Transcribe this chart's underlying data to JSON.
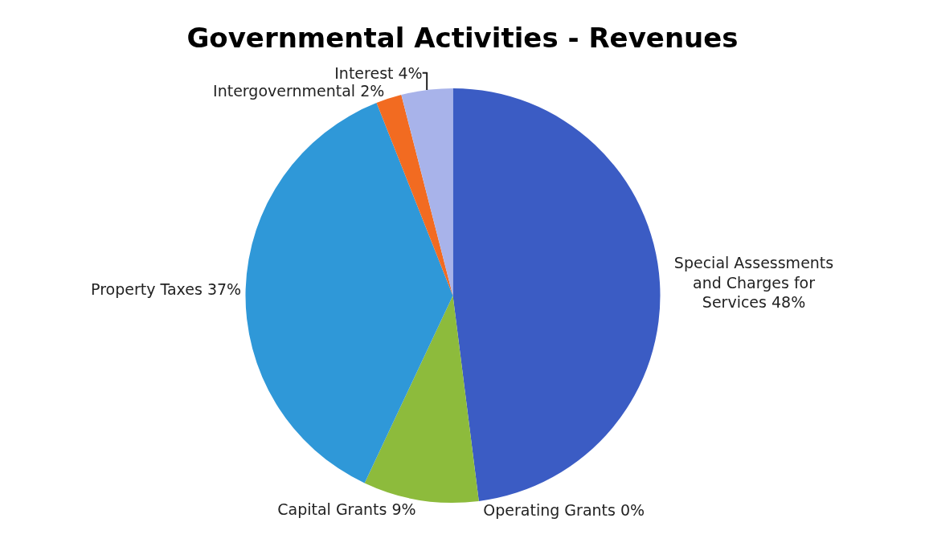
{
  "chart_data": {
    "type": "pie",
    "title": "Governmental Activities - Revenues",
    "categories": [
      "Special Assessments and Charges for Services",
      "Operating Grants",
      "Capital Grants",
      "Property Taxes",
      "Intergovernmental",
      "Interest"
    ],
    "values": [
      48,
      0,
      9,
      37,
      2,
      4
    ],
    "value_labels": [
      "48%",
      "0%",
      "9%",
      "37%",
      "2%",
      "4%"
    ],
    "colors": [
      "#3b5cc4",
      "#c0392b",
      "#8dbb3c",
      "#2f98d8",
      "#f26b21",
      "#a8b3ea"
    ],
    "legend": false
  }
}
